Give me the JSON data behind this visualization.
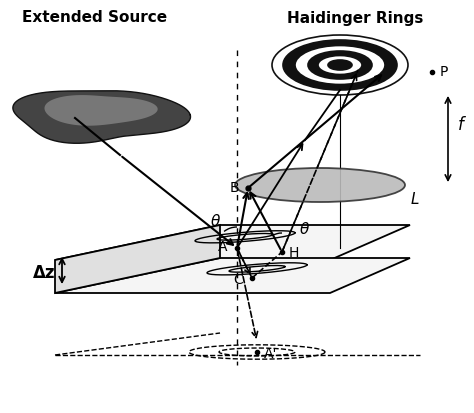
{
  "title_left": "Extended Source",
  "title_right": "Haidinger Rings",
  "bg_color": "#ffffff",
  "label_A": "A",
  "label_B": "B",
  "label_C": "C",
  "label_H": "H",
  "label_Ap": "A'",
  "label_P": "P",
  "label_L": "L",
  "label_f": "f",
  "label_dz": "Δz",
  "label_theta1": "θ",
  "label_theta2": "θ"
}
